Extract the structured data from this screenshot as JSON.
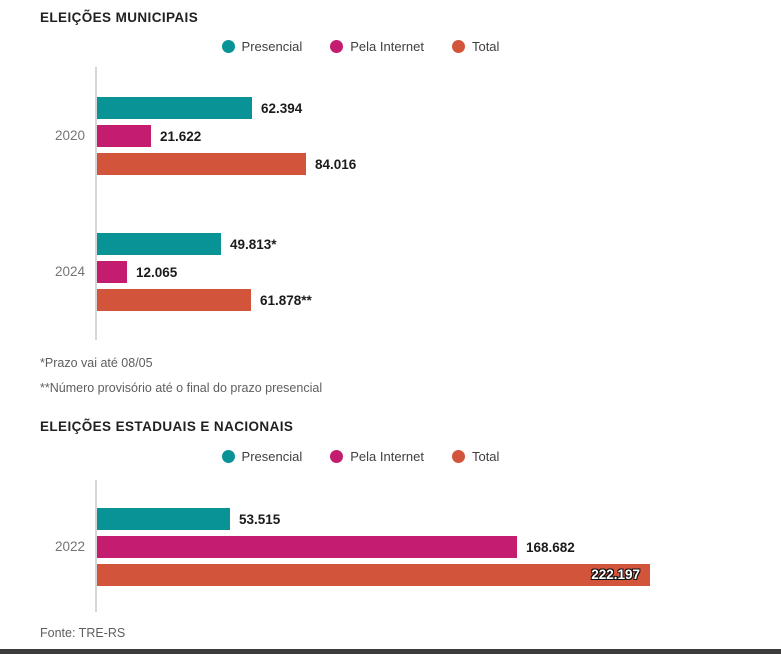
{
  "page": {
    "source": "Fonte: TRE-RS"
  },
  "colors": {
    "presencial": "#0A9396",
    "pela_internet": "#C41D6F",
    "total": "#D2553B",
    "axis": "#D6D6D6",
    "bottom_bar": "#3B3B3B",
    "value_text": "#1B1B1B"
  },
  "chart_data": [
    {
      "type": "bar",
      "orientation": "horizontal",
      "title": "ELEIÇÕES MUNICIPAIS",
      "legend": [
        "Presencial",
        "Pela Internet",
        "Total"
      ],
      "legend_position": "top-center",
      "grid": false,
      "x_axis": {
        "min": 0
      },
      "categories": [
        "2020",
        "2024"
      ],
      "series": [
        {
          "name": "Presencial",
          "color": "#0A9396",
          "values": [
            62394,
            49813
          ],
          "labels": [
            "62.394",
            "49.813*"
          ]
        },
        {
          "name": "Pela Internet",
          "color": "#C41D6F",
          "values": [
            21622,
            12065
          ],
          "labels": [
            "21.622",
            "12.065"
          ]
        },
        {
          "name": "Total",
          "color": "#D2553B",
          "values": [
            84016,
            61878
          ],
          "labels": [
            "84.016",
            "61.878**"
          ]
        }
      ],
      "footnotes": [
        "*Prazo vai até 08/05",
        "**Número provisório até o final do prazo presencial"
      ]
    },
    {
      "type": "bar",
      "orientation": "horizontal",
      "title": "ELEIÇÕES ESTADUAIS E NACIONAIS",
      "legend": [
        "Presencial",
        "Pela Internet",
        "Total"
      ],
      "legend_position": "top-center",
      "grid": false,
      "x_axis": {
        "min": 0
      },
      "categories": [
        "2022"
      ],
      "series": [
        {
          "name": "Presencial",
          "color": "#0A9396",
          "values": [
            53515
          ],
          "labels": [
            "53.515"
          ]
        },
        {
          "name": "Pela Internet",
          "color": "#C41D6F",
          "values": [
            168682
          ],
          "labels": [
            "168.682"
          ]
        },
        {
          "name": "Total",
          "color": "#D2553B",
          "values": [
            222197
          ],
          "labels": [
            "222.197"
          ],
          "label_inside": [
            true
          ]
        }
      ],
      "footnotes": []
    }
  ]
}
